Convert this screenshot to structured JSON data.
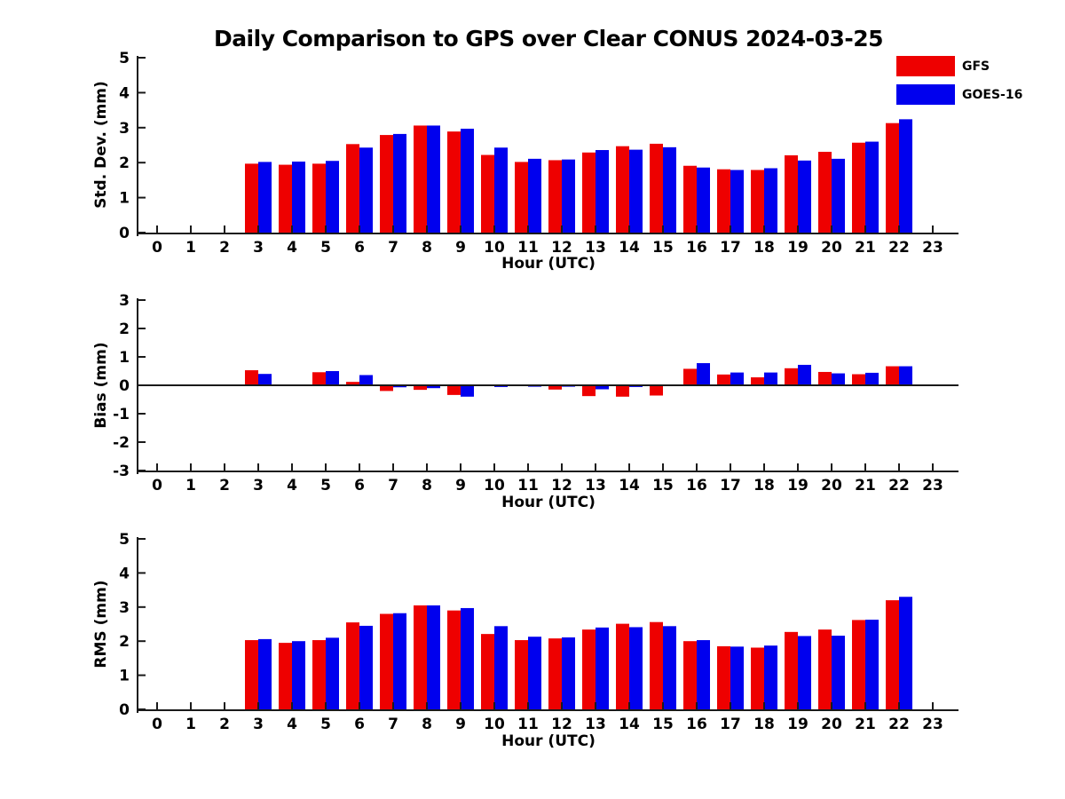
{
  "figure": {
    "title": "Daily Comparison to GPS over Clear CONUS 2024-03-25"
  },
  "legend": {
    "position": "top-right-outside",
    "entries": [
      {
        "label": "GFS",
        "color": "#ee0000"
      },
      {
        "label": "GOES-16",
        "color": "#0000ee"
      }
    ]
  },
  "chart_data": [
    {
      "type": "bar",
      "ylabel": "Std. Dev. (mm)",
      "xlabel": "Hour (UTC)",
      "ylim": [
        0,
        5
      ],
      "yticks": [
        0,
        1,
        2,
        3,
        4,
        5
      ],
      "grid": false,
      "zero_line": false,
      "categories": [
        0,
        1,
        2,
        3,
        4,
        5,
        6,
        7,
        8,
        9,
        10,
        11,
        12,
        13,
        14,
        15,
        16,
        17,
        18,
        19,
        20,
        21,
        22,
        23
      ],
      "series": [
        {
          "name": "GFS",
          "color": "#ee0000",
          "values": [
            null,
            null,
            null,
            1.97,
            1.94,
            1.97,
            2.53,
            2.79,
            3.06,
            2.89,
            2.22,
            2.02,
            2.07,
            2.29,
            2.47,
            2.54,
            1.91,
            1.81,
            1.79,
            2.21,
            2.31,
            2.57,
            3.13,
            null
          ]
        },
        {
          "name": "GOES-16",
          "color": "#0000ee",
          "values": [
            null,
            null,
            null,
            2.02,
            2.03,
            2.05,
            2.43,
            2.82,
            3.06,
            2.97,
            2.43,
            2.11,
            2.09,
            2.36,
            2.37,
            2.44,
            1.86,
            1.79,
            1.84,
            2.06,
            2.11,
            2.6,
            3.24,
            null
          ]
        }
      ]
    },
    {
      "type": "bar",
      "ylabel": "Bias (mm)",
      "xlabel": "Hour (UTC)",
      "ylim": [
        -3,
        3
      ],
      "yticks": [
        -3,
        -2,
        -1,
        0,
        1,
        2,
        3
      ],
      "grid": false,
      "zero_line": true,
      "categories": [
        0,
        1,
        2,
        3,
        4,
        5,
        6,
        7,
        8,
        9,
        10,
        11,
        12,
        13,
        14,
        15,
        16,
        17,
        18,
        19,
        20,
        21,
        22,
        23
      ],
      "series": [
        {
          "name": "GFS",
          "color": "#ee0000",
          "values": [
            null,
            null,
            null,
            0.53,
            -0.03,
            0.46,
            0.12,
            -0.2,
            -0.16,
            -0.34,
            -0.03,
            -0.02,
            -0.15,
            -0.38,
            -0.4,
            -0.36,
            0.58,
            0.38,
            0.28,
            0.6,
            0.47,
            0.39,
            0.67,
            null
          ]
        },
        {
          "name": "GOES-16",
          "color": "#0000ee",
          "values": [
            null,
            null,
            null,
            0.4,
            -0.02,
            0.5,
            0.36,
            -0.07,
            -0.1,
            -0.4,
            -0.06,
            -0.05,
            -0.05,
            -0.14,
            -0.06,
            0.03,
            0.78,
            0.45,
            0.45,
            0.72,
            0.42,
            0.44,
            0.67,
            null
          ]
        }
      ]
    },
    {
      "type": "bar",
      "ylabel": "RMS (mm)",
      "xlabel": "Hour (UTC)",
      "ylim": [
        0,
        5
      ],
      "yticks": [
        0,
        1,
        2,
        3,
        4,
        5
      ],
      "grid": false,
      "zero_line": false,
      "categories": [
        0,
        1,
        2,
        3,
        4,
        5,
        6,
        7,
        8,
        9,
        10,
        11,
        12,
        13,
        14,
        15,
        16,
        17,
        18,
        19,
        20,
        21,
        22,
        23
      ],
      "series": [
        {
          "name": "GFS",
          "color": "#ee0000",
          "values": [
            null,
            null,
            null,
            2.03,
            1.95,
            2.03,
            2.55,
            2.8,
            3.05,
            2.9,
            2.21,
            2.03,
            2.08,
            2.34,
            2.51,
            2.56,
            2.0,
            1.85,
            1.81,
            2.27,
            2.34,
            2.62,
            3.2,
            null
          ]
        },
        {
          "name": "GOES-16",
          "color": "#0000ee",
          "values": [
            null,
            null,
            null,
            2.06,
            2.0,
            2.1,
            2.45,
            2.82,
            3.05,
            2.97,
            2.44,
            2.13,
            2.11,
            2.4,
            2.41,
            2.44,
            2.03,
            1.84,
            1.87,
            2.15,
            2.16,
            2.63,
            3.3,
            null
          ]
        }
      ]
    }
  ]
}
